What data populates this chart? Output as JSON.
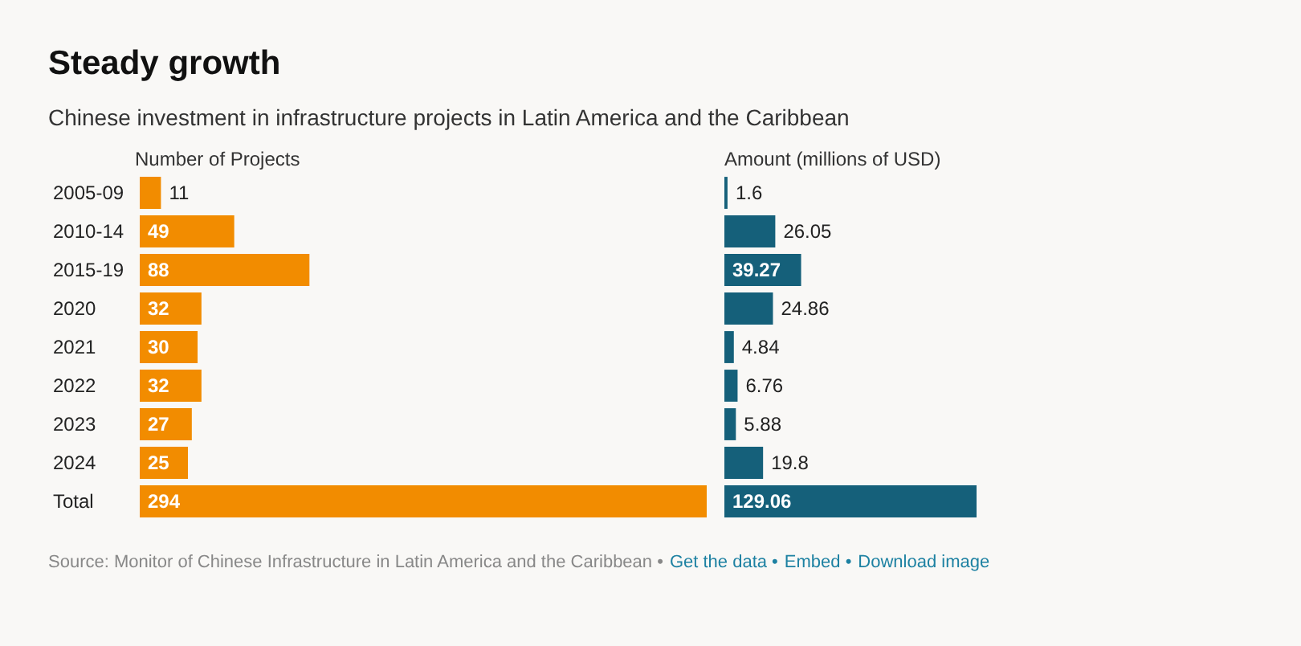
{
  "chart_data": [
    {
      "type": "bar",
      "orientation": "horizontal",
      "title": "Steady growth",
      "subtitle": "Chinese investment in infrastructure projects in Latin America and the Caribbean",
      "xlabel": "Number of Projects",
      "categories": [
        "2005-09",
        "2010-14",
        "2015-19",
        "2020",
        "2021",
        "2022",
        "2023",
        "2024",
        "Total"
      ],
      "values": [
        11,
        49,
        88,
        32,
        30,
        32,
        27,
        25,
        294
      ],
      "color": "#f28c00",
      "data_labels": true,
      "tick_labels": "y",
      "annotations": [
        "Source: Monitor of Chinese Infrastructure in Latin America and the Caribbean •",
        "Get the data •",
        "Embed •",
        "Download image"
      ]
    },
    {
      "type": "bar",
      "orientation": "horizontal",
      "xlabel": "Amount (millions of USD)",
      "categories": [
        null,
        null,
        null,
        null,
        null,
        null,
        null,
        null,
        null
      ],
      "values": [
        1.6,
        26.05,
        39.27,
        24.86,
        4.84,
        6.76,
        5.88,
        19.8,
        129.06
      ],
      "color": "#15607a",
      "data_labels": true,
      "tick_labels": false
    }
  ]
}
